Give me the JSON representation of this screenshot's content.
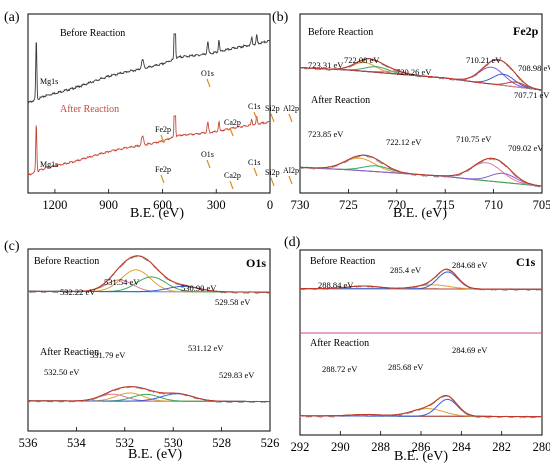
{
  "figure": {
    "colors": {
      "survey_before": "#3a3a3a",
      "survey_after": "#c8483a",
      "raw_gray": "#8a8a8a",
      "fit_envelope": "#c0392b",
      "fit_red": "#c0392b",
      "fit_blue": "#3b5bd6",
      "fit_orange": "#e0a030",
      "fit_green": "#3aa85a",
      "fit_pink": "#e07aa0",
      "fit_purple": "#8a5ad0",
      "baseline_cyan": "#2bb3d0",
      "arrow": "#e08a20",
      "divider_pink": "#d24a8a"
    }
  },
  "chart_data": [
    {
      "id": "a",
      "type": "line",
      "panel_label": "(a)",
      "panel_title": "",
      "xlabel": "B.E. (eV)",
      "xlim": [
        1350,
        0
      ],
      "x_ticks": [
        1200,
        900,
        600,
        300,
        0
      ],
      "series": [
        {
          "name": "Before Reaction",
          "label": "Before Reaction",
          "color": "#3a3a3a",
          "baseline": [
            [
              1350,
              0.22
            ],
            [
              1310,
              0.25
            ],
            [
              1250,
              0.3
            ],
            [
              1100,
              0.38
            ],
            [
              1000,
              0.45
            ],
            [
              900,
              0.52
            ],
            [
              800,
              0.57
            ],
            [
              700,
              0.61
            ],
            [
              600,
              0.66
            ],
            [
              540,
              0.71
            ],
            [
              500,
              0.74
            ],
            [
              400,
              0.76
            ],
            [
              300,
              0.79
            ],
            [
              200,
              0.84
            ],
            [
              100,
              0.88
            ],
            [
              0,
              0.92
            ]
          ],
          "peaks": [
            {
              "name": "Mg1s",
              "x": 1304,
              "h": 0.68,
              "w": 3
            },
            {
              "name": "Fe2p",
              "x": 711,
              "h": 0.1,
              "w": 6
            },
            {
              "name": "O1s",
              "x": 531,
              "h": 0.95,
              "w": 3
            },
            {
              "name": "Ca2p",
              "x": 347,
              "h": 0.13,
              "w": 4
            },
            {
              "name": "C1s",
              "x": 285,
              "h": 0.14,
              "w": 3
            },
            {
              "name": "Si2p",
              "x": 102,
              "h": 0.08,
              "w": 3
            },
            {
              "name": "Al2p",
              "x": 74,
              "h": 0.1,
              "w": 3
            }
          ],
          "labels": [
            "Mg1s",
            "Fe2p",
            "O1s",
            "Ca2p",
            "C1s",
            "Si2p",
            "Al2p"
          ]
        },
        {
          "name": "After Reaction",
          "label": "After Reaction",
          "color": "#c8483a",
          "baseline": [
            [
              1350,
              0.2
            ],
            [
              1310,
              0.24
            ],
            [
              1250,
              0.3
            ],
            [
              1100,
              0.38
            ],
            [
              1000,
              0.45
            ],
            [
              900,
              0.52
            ],
            [
              800,
              0.57
            ],
            [
              700,
              0.61
            ],
            [
              600,
              0.66
            ],
            [
              540,
              0.71
            ],
            [
              500,
              0.74
            ],
            [
              400,
              0.76
            ],
            [
              300,
              0.79
            ],
            [
              200,
              0.84
            ],
            [
              100,
              0.88
            ],
            [
              0,
              0.92
            ]
          ],
          "peaks": [
            {
              "name": "Mg1s",
              "x": 1304,
              "h": 0.65,
              "w": 3
            },
            {
              "name": "Fe2p",
              "x": 711,
              "h": 0.12,
              "w": 6
            },
            {
              "name": "O1s",
              "x": 531,
              "h": 1.0,
              "w": 3
            },
            {
              "name": "Ca2p",
              "x": 347,
              "h": 0.14,
              "w": 4
            },
            {
              "name": "C1s",
              "x": 285,
              "h": 0.13,
              "w": 3
            },
            {
              "name": "Si2p",
              "x": 102,
              "h": 0.08,
              "w": 3
            },
            {
              "name": "Al2p",
              "x": 74,
              "h": 0.1,
              "w": 3
            }
          ],
          "labels": [
            "Mg1s",
            "Fe2p",
            "O1s",
            "Ca2p",
            "C1s",
            "Si2p",
            "Al2p"
          ]
        }
      ]
    },
    {
      "id": "b",
      "type": "line",
      "panel_label": "(b)",
      "panel_title": "Fe2p",
      "xlabel": "B.E. (eV)",
      "xlim": [
        730,
        705
      ],
      "x_ticks": [
        730,
        725,
        720,
        715,
        710,
        705
      ],
      "series": [
        {
          "name": "Before Reaction",
          "label": "Before Reaction",
          "baseline": [
            [
              730,
              0.58
            ],
            [
              725,
              0.55
            ],
            [
              720,
              0.5
            ],
            [
              715,
              0.45
            ],
            [
              712,
              0.4
            ],
            [
              705,
              0.3
            ]
          ],
          "components": [
            {
              "center": 723.31,
              "height": 0.11,
              "width": 1.2
            },
            {
              "center": 722.08,
              "height": 0.07,
              "width": 1.2
            },
            {
              "center": 720.26,
              "height": 0.03,
              "width": 1.2
            },
            {
              "center": 710.21,
              "height": 0.21,
              "width": 1.3
            },
            {
              "center": 708.98,
              "height": 0.14,
              "width": 1.1
            },
            {
              "center": 707.71,
              "height": 0.06,
              "width": 0.9
            }
          ],
          "peak_labels": [
            "723.31 eV",
            "722.08 eV",
            "720.26 eV",
            "710.21 eV",
            "708.98 eV",
            "707.71 eV"
          ]
        },
        {
          "name": "After Reaction",
          "label": "After Reaction",
          "baseline": [
            [
              730,
              0.35
            ],
            [
              725,
              0.32
            ],
            [
              720,
              0.28
            ],
            [
              715,
              0.24
            ],
            [
              712,
              0.2
            ],
            [
              705,
              0.12
            ]
          ],
          "components": [
            {
              "center": 723.85,
              "height": 0.15,
              "width": 1.6
            },
            {
              "center": 722.12,
              "height": 0.07,
              "width": 1.4
            },
            {
              "center": 710.75,
              "height": 0.22,
              "width": 1.6
            },
            {
              "center": 709.02,
              "height": 0.11,
              "width": 1.3
            }
          ],
          "peak_labels": [
            "723.85 eV",
            "722.12 eV",
            "710.75 eV",
            "709.02 eV"
          ]
        }
      ]
    },
    {
      "id": "c",
      "type": "line",
      "panel_label": "(c)",
      "panel_title": "O1s",
      "xlabel": "B.E. (eV)",
      "xlim": [
        536,
        526
      ],
      "x_ticks": [
        536,
        534,
        532,
        530,
        528,
        526
      ],
      "series": [
        {
          "name": "Before Reaction",
          "label": "Before Reaction",
          "baseline": [
            [
              536,
              0.56
            ],
            [
              526,
              0.55
            ]
          ],
          "components": [
            {
              "center": 532.22,
              "height": 0.15,
              "width": 0.55
            },
            {
              "center": 531.54,
              "height": 0.28,
              "width": 0.6
            },
            {
              "center": 530.9,
              "height": 0.19,
              "width": 0.6
            },
            {
              "center": 529.58,
              "height": 0.07,
              "width": 0.65
            }
          ],
          "peak_labels": [
            "532.22 eV",
            "531.54 eV",
            "530.90 eV",
            "529.58 eV"
          ]
        },
        {
          "name": "After Reaction",
          "label": "After Reaction",
          "baseline": [
            [
              536,
              0.12
            ],
            [
              526,
              0.11
            ]
          ],
          "components": [
            {
              "center": 532.5,
              "height": 0.1,
              "width": 0.55
            },
            {
              "center": 531.79,
              "height": 0.12,
              "width": 0.55
            },
            {
              "center": 531.12,
              "height": 0.1,
              "width": 0.55
            },
            {
              "center": 529.83,
              "height": 0.11,
              "width": 0.65
            }
          ],
          "peak_labels": [
            "532.50 eV",
            "531.79 eV",
            "531.12 eV",
            "529.83 eV"
          ]
        }
      ]
    },
    {
      "id": "d",
      "type": "line",
      "panel_label": "(d)",
      "panel_title": "C1s",
      "xlabel": "B.E. (eV)",
      "xlim": [
        292,
        280
      ],
      "x_ticks": [
        292,
        290,
        288,
        286,
        284,
        282,
        280
      ],
      "series": [
        {
          "name": "Before Reaction",
          "label": "Before Reaction",
          "baseline": [
            [
              292,
              0.58
            ],
            [
              280,
              0.57
            ]
          ],
          "components": [
            {
              "center": 288.84,
              "height": 0.04,
              "width": 0.8
            },
            {
              "center": 285.4,
              "height": 0.06,
              "width": 0.8
            },
            {
              "center": 284.68,
              "height": 0.25,
              "width": 0.5
            }
          ],
          "peak_labels": [
            "288.84 eV",
            "285.4 eV",
            "284.68 eV"
          ]
        },
        {
          "name": "After Reaction",
          "label": "After Reaction",
          "baseline": [
            [
              292,
              0.08
            ],
            [
              280,
              0.07
            ]
          ],
          "components": [
            {
              "center": 288.72,
              "height": 0.02,
              "width": 0.8
            },
            {
              "center": 285.68,
              "height": 0.1,
              "width": 0.8
            },
            {
              "center": 284.69,
              "height": 0.22,
              "width": 0.5
            }
          ],
          "peak_labels": [
            "288.72 eV",
            "285.68 eV",
            "284.69 eV"
          ]
        }
      ]
    }
  ]
}
